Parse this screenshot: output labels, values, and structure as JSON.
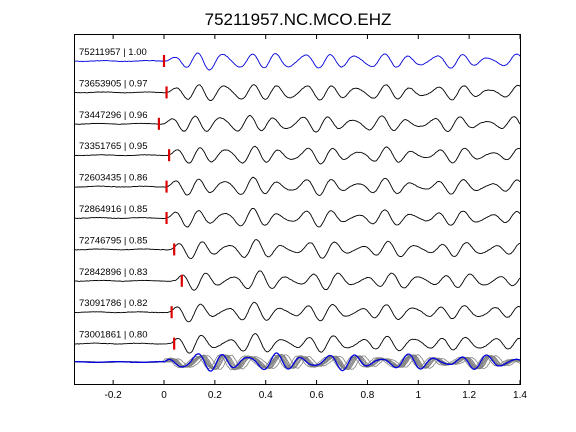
{
  "chart_data": {
    "type": "line",
    "title": "75211957.NC.MCO.EHZ",
    "xlabel": "",
    "ylabel": "",
    "xlim": [
      -0.35,
      1.4
    ],
    "xticks": [
      -0.2,
      0,
      0.2,
      0.4,
      0.6,
      0.8,
      1,
      1.2,
      1.4
    ],
    "xtick_labels": [
      "-0.2",
      "0",
      "0.2",
      "0.4",
      "0.6",
      "0.8",
      "1",
      "1.2",
      "1.4"
    ],
    "grid": false,
    "legend": "none",
    "colors": {
      "master_trace": "#0000dd",
      "trace": "#000000",
      "pick_marker": "#dd0000",
      "stack_trace": "#808080"
    },
    "traces": [
      {
        "event_id": "75211957",
        "correlation": "1.00",
        "label": "75211957 | 1.00",
        "pick_time": 0.0,
        "color": "#0000dd"
      },
      {
        "event_id": "73653905",
        "correlation": "0.97",
        "label": "73653905 | 0.97",
        "pick_time": 0.01,
        "color": "#000000"
      },
      {
        "event_id": "73447296",
        "correlation": "0.96",
        "label": "73447296 | 0.96",
        "pick_time": -0.02,
        "color": "#000000"
      },
      {
        "event_id": "73351765",
        "correlation": "0.95",
        "label": "73351765 | 0.95",
        "pick_time": 0.02,
        "color": "#000000"
      },
      {
        "event_id": "72603435",
        "correlation": "0.86",
        "label": "72603435 | 0.86",
        "pick_time": 0.01,
        "color": "#000000"
      },
      {
        "event_id": "72864916",
        "correlation": "0.85",
        "label": "72864916 | 0.85",
        "pick_time": 0.01,
        "color": "#000000"
      },
      {
        "event_id": "72746795",
        "correlation": "0.85",
        "label": "72746795 | 0.85",
        "pick_time": 0.04,
        "color": "#000000"
      },
      {
        "event_id": "72842896",
        "correlation": "0.83",
        "label": "72842896 | 0.83",
        "pick_time": 0.07,
        "color": "#000000"
      },
      {
        "event_id": "73091786",
        "correlation": "0.82",
        "label": "73091786 | 0.82",
        "pick_time": 0.03,
        "color": "#000000"
      },
      {
        "event_id": "73001861",
        "correlation": "0.80",
        "label": "73001861 | 0.80",
        "pick_time": 0.04,
        "color": "#000000"
      }
    ],
    "stack": {
      "label": "",
      "overlay_count": 10
    }
  }
}
